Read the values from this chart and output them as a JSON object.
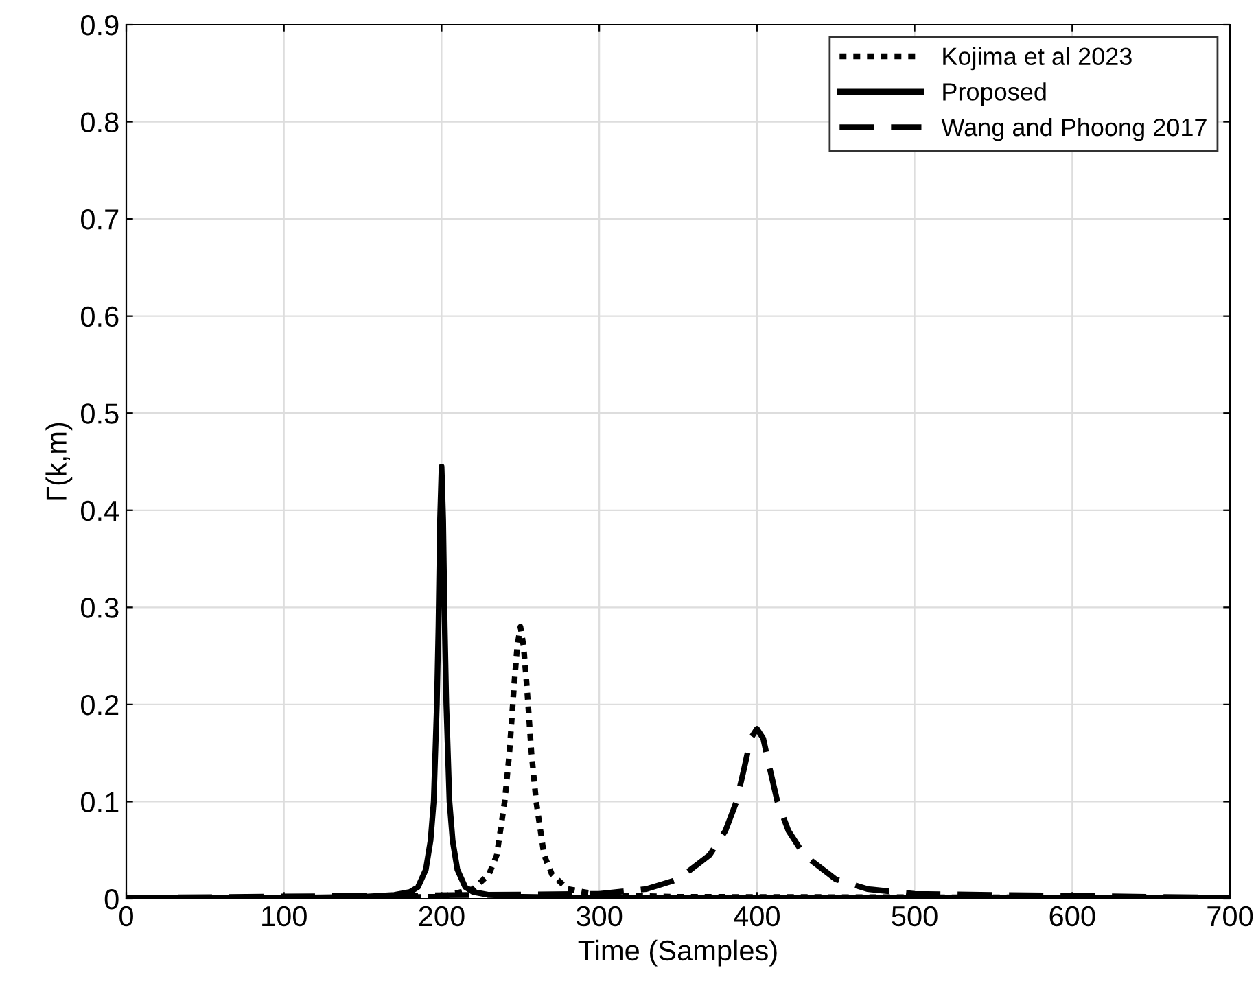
{
  "chart_data": {
    "type": "line",
    "xlabel": "Time (Samples)",
    "ylabel": "Γ(k,m)",
    "xlim": [
      0,
      700
    ],
    "ylim": [
      0,
      0.9
    ],
    "xticks": [
      0,
      100,
      200,
      300,
      400,
      500,
      600,
      700
    ],
    "yticks": [
      0,
      0.1,
      0.2,
      0.3,
      0.4,
      0.5,
      0.6,
      0.7,
      0.8,
      0.9
    ],
    "grid": true,
    "legend": "top right",
    "series": [
      {
        "name": "Kojima et al 2023",
        "color": "#000000",
        "line_style": "dotted",
        "x": [
          0,
          100,
          200,
          220,
          230,
          235,
          240,
          243,
          246,
          248,
          250,
          252,
          254,
          257,
          260,
          265,
          270,
          280,
          300,
          350,
          700
        ],
        "values": [
          0.001,
          0.001,
          0.002,
          0.01,
          0.025,
          0.045,
          0.1,
          0.15,
          0.22,
          0.26,
          0.28,
          0.26,
          0.22,
          0.15,
          0.1,
          0.045,
          0.025,
          0.01,
          0.004,
          0.002,
          0.001
        ]
      },
      {
        "name": "Proposed",
        "color": "#000000",
        "line_style": "solid",
        "x": [
          0,
          100,
          150,
          170,
          180,
          185,
          190,
          193,
          195,
          197,
          198,
          199,
          200,
          201,
          202,
          203,
          205,
          207,
          210,
          215,
          220,
          230,
          250,
          300,
          700
        ],
        "values": [
          0.001,
          0.001,
          0.002,
          0.004,
          0.007,
          0.012,
          0.03,
          0.06,
          0.1,
          0.2,
          0.28,
          0.39,
          0.445,
          0.39,
          0.28,
          0.2,
          0.1,
          0.06,
          0.03,
          0.012,
          0.007,
          0.004,
          0.002,
          0.001,
          0.001
        ]
      },
      {
        "name": "Wang and Phoong 2017",
        "color": "#000000",
        "line_style": "dashed",
        "x": [
          0,
          300,
          330,
          350,
          370,
          380,
          387,
          392,
          396,
          400,
          404,
          408,
          413,
          420,
          430,
          450,
          470,
          500,
          700
        ],
        "values": [
          0.001,
          0.005,
          0.01,
          0.02,
          0.045,
          0.07,
          0.1,
          0.135,
          0.165,
          0.175,
          0.165,
          0.135,
          0.1,
          0.07,
          0.045,
          0.02,
          0.01,
          0.005,
          0.001
        ]
      }
    ]
  }
}
